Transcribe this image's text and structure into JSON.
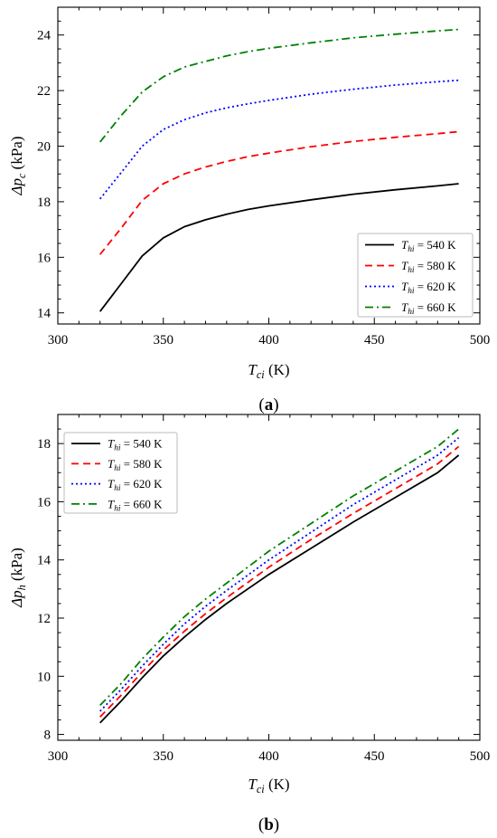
{
  "chart_data": [
    {
      "type": "line",
      "caption": "(a)",
      "caption_letter": "a",
      "xlabel_main": "T",
      "xlabel_sub": "ci",
      "xlabel_unit": " (K)",
      "ylabel_main": "Δp",
      "ylabel_sub": "c",
      "ylabel_unit": " (kPa)",
      "xlim": [
        300,
        500
      ],
      "ylim": [
        13.6,
        25
      ],
      "xticks": [
        300,
        350,
        400,
        450,
        500
      ],
      "yticks": [
        14,
        16,
        18,
        20,
        22,
        24
      ],
      "grid": false,
      "legend_position": "bottom-right",
      "series": [
        {
          "name": "T_hi = 540 K",
          "legend_main": "T",
          "legend_sub": "hi",
          "legend_rest": " = 540 K",
          "color": "#000000",
          "dash": "none",
          "x": [
            320,
            330,
            340,
            350,
            360,
            370,
            380,
            390,
            400,
            420,
            440,
            460,
            480,
            490
          ],
          "y": [
            14.05,
            15.05,
            16.05,
            16.7,
            17.1,
            17.35,
            17.55,
            17.72,
            17.85,
            18.07,
            18.27,
            18.43,
            18.57,
            18.65
          ]
        },
        {
          "name": "T_hi = 580 K",
          "legend_main": "T",
          "legend_sub": "hi",
          "legend_rest": " = 580 K",
          "color": "#ff0000",
          "dash": "8,5",
          "x": [
            320,
            330,
            340,
            350,
            360,
            370,
            380,
            390,
            400,
            420,
            440,
            460,
            480,
            490
          ],
          "y": [
            16.1,
            17.05,
            18.05,
            18.65,
            19.0,
            19.25,
            19.45,
            19.62,
            19.75,
            19.98,
            20.17,
            20.32,
            20.45,
            20.52
          ]
        },
        {
          "name": "T_hi = 620 K",
          "legend_main": "T",
          "legend_sub": "hi",
          "legend_rest": " = 620 K",
          "color": "#0000ff",
          "dash": "2,3",
          "x": [
            320,
            330,
            340,
            350,
            360,
            370,
            380,
            390,
            400,
            420,
            440,
            460,
            480,
            490
          ],
          "y": [
            18.1,
            19.05,
            20.0,
            20.6,
            20.95,
            21.2,
            21.38,
            21.52,
            21.65,
            21.87,
            22.05,
            22.2,
            22.32,
            22.37
          ]
        },
        {
          "name": "T_hi = 660 K",
          "legend_main": "T",
          "legend_sub": "hi",
          "legend_rest": " = 660 K",
          "color": "#008000",
          "dash": "9,4,2,4",
          "x": [
            320,
            330,
            340,
            350,
            360,
            370,
            380,
            390,
            400,
            420,
            440,
            460,
            480,
            490
          ],
          "y": [
            20.15,
            21.1,
            21.95,
            22.5,
            22.85,
            23.05,
            23.25,
            23.4,
            23.52,
            23.72,
            23.9,
            24.03,
            24.15,
            24.2
          ]
        }
      ]
    },
    {
      "type": "line",
      "caption": "(b)",
      "caption_letter": "b",
      "xlabel_main": "T",
      "xlabel_sub": "ci",
      "xlabel_unit": " (K)",
      "ylabel_main": "Δp",
      "ylabel_sub": "h",
      "ylabel_unit": " (kPa)",
      "xlim": [
        300,
        500
      ],
      "ylim": [
        7.8,
        19.0
      ],
      "xticks": [
        300,
        350,
        400,
        450,
        500
      ],
      "yticks": [
        8,
        10,
        12,
        14,
        16,
        18
      ],
      "grid": false,
      "legend_position": "top-left",
      "series": [
        {
          "name": "T_hi = 540 K",
          "legend_main": "T",
          "legend_sub": "hi",
          "legend_rest": " = 540 K",
          "color": "#000000",
          "dash": "none",
          "x": [
            320,
            330,
            340,
            350,
            360,
            370,
            380,
            400,
            420,
            440,
            460,
            480,
            490
          ],
          "y": [
            8.4,
            9.15,
            9.95,
            10.7,
            11.35,
            11.95,
            12.5,
            13.5,
            14.4,
            15.3,
            16.15,
            17.0,
            17.6
          ]
        },
        {
          "name": "T_hi = 580 K",
          "legend_main": "T",
          "legend_sub": "hi",
          "legend_rest": " = 580 K",
          "color": "#ff0000",
          "dash": "8,5",
          "x": [
            320,
            330,
            340,
            350,
            360,
            370,
            380,
            400,
            420,
            440,
            460,
            480,
            490
          ],
          "y": [
            8.6,
            9.35,
            10.15,
            10.9,
            11.55,
            12.15,
            12.7,
            13.75,
            14.7,
            15.6,
            16.45,
            17.3,
            17.9
          ]
        },
        {
          "name": "T_hi = 620 K",
          "legend_main": "T",
          "legend_sub": "hi",
          "legend_rest": " = 620 K",
          "color": "#0000ff",
          "dash": "2,3",
          "x": [
            320,
            330,
            340,
            350,
            360,
            370,
            380,
            400,
            420,
            440,
            460,
            480,
            490
          ],
          "y": [
            8.8,
            9.55,
            10.35,
            11.1,
            11.8,
            12.4,
            12.95,
            14.0,
            14.95,
            15.9,
            16.75,
            17.6,
            18.2
          ]
        },
        {
          "name": "T_hi = 660 K",
          "legend_main": "T",
          "legend_sub": "hi",
          "legend_rest": " = 660 K",
          "color": "#008000",
          "dash": "9,4,2,4",
          "x": [
            320,
            330,
            340,
            350,
            360,
            370,
            380,
            400,
            420,
            440,
            460,
            480,
            490
          ],
          "y": [
            9.0,
            9.75,
            10.6,
            11.35,
            12.05,
            12.65,
            13.2,
            14.3,
            15.25,
            16.2,
            17.05,
            17.9,
            18.5
          ]
        }
      ]
    }
  ]
}
